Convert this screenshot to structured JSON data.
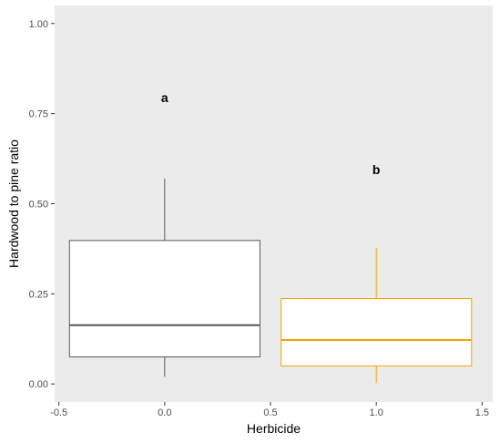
{
  "chart_data": {
    "type": "box",
    "xlabel": "Herbicide",
    "ylabel": "Hardwood to pine ratio",
    "xlim": [
      -0.52,
      1.55
    ],
    "ylim": [
      -0.05,
      1.05
    ],
    "x_ticks": [
      -0.5,
      0.0,
      0.5,
      1.0,
      1.5
    ],
    "x_tick_labels": [
      "-0.5",
      "0.0",
      "0.5",
      "1.0",
      "1.5"
    ],
    "y_ticks": [
      0.0,
      0.25,
      0.5,
      0.75,
      1.0
    ],
    "y_tick_labels": [
      "0.00",
      "0.25",
      "0.50",
      "0.75",
      "1.00"
    ],
    "grid": false,
    "panel_background": "#ebebeb",
    "boxes": [
      {
        "x": 0.0,
        "width": 0.9,
        "color": "#595959",
        "whisker_low": 0.02,
        "q1": 0.075,
        "median": 0.163,
        "q3": 0.398,
        "whisker_high": 0.57,
        "letter": "a",
        "letter_y": 0.795
      },
      {
        "x": 1.0,
        "width": 0.9,
        "color": "#f5a300",
        "whisker_low": 0.003,
        "q1": 0.05,
        "median": 0.122,
        "q3": 0.237,
        "whisker_high": 0.378,
        "letter": "b",
        "letter_y": 0.595
      }
    ]
  }
}
